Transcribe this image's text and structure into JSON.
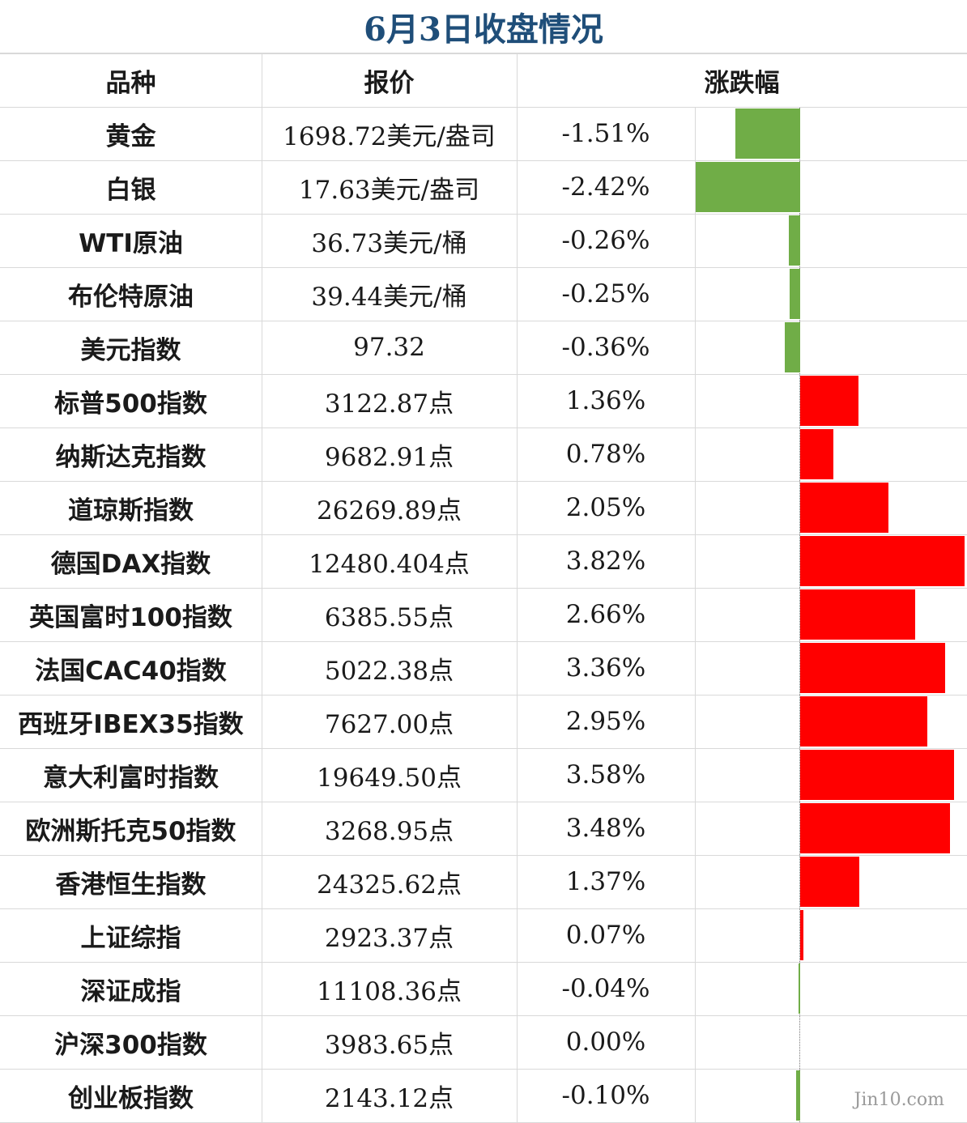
{
  "title": "6月3日收盘情况",
  "headers": {
    "name": "品种",
    "price": "报价",
    "change": "涨跌幅"
  },
  "colors": {
    "title": "#1f4e79",
    "up": "#ff0000",
    "down": "#70ad47",
    "grid": "#d9d9d9"
  },
  "watermark": "Jin10.com",
  "chart_data": {
    "type": "bar",
    "orientation": "horizontal",
    "categories": [
      "黄金",
      "白银",
      "WTI原油",
      "布伦特原油",
      "美元指数",
      "标普500指数",
      "纳斯达克指数",
      "道琼斯指数",
      "德国DAX指数",
      "英国富时100指数",
      "法国CAC40指数",
      "西班牙IBEX35指数",
      "意大利富时指数",
      "欧洲斯托克50指数",
      "香港恒生指数",
      "上证综指",
      "深证成指",
      "沪深300指数",
      "创业板指数"
    ],
    "prices": [
      "1698.72美元/盎司",
      "17.63美元/盎司",
      "36.73美元/桶",
      "39.44美元/桶",
      "97.32",
      "3122.87点",
      "9682.91点",
      "26269.89点",
      "12480.404点",
      "6385.55点",
      "5022.38点",
      "7627.00点",
      "19649.50点",
      "3268.95点",
      "24325.62点",
      "2923.37点",
      "11108.36点",
      "3983.65点",
      "2143.12点"
    ],
    "change_labels": [
      "-1.51%",
      "-2.42%",
      "-0.26%",
      "-0.25%",
      "-0.36%",
      "1.36%",
      "0.78%",
      "2.05%",
      "3.82%",
      "2.66%",
      "3.36%",
      "2.95%",
      "3.58%",
      "3.48%",
      "1.37%",
      "0.07%",
      "-0.04%",
      "0.00%",
      "-0.10%"
    ],
    "values": [
      -1.51,
      -2.42,
      -0.26,
      -0.25,
      -0.36,
      1.36,
      0.78,
      2.05,
      3.82,
      2.66,
      3.36,
      2.95,
      3.58,
      3.48,
      1.37,
      0.07,
      -0.04,
      0.0,
      -0.1
    ]
  }
}
